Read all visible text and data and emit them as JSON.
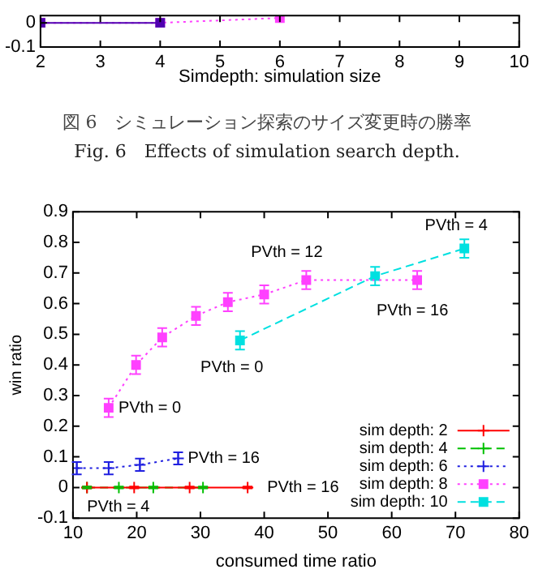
{
  "chart_data": [
    {
      "type": "line",
      "xlabel": "Simdepth: simulation size",
      "xlim": [
        2,
        10
      ],
      "xticks": [
        2,
        3,
        4,
        5,
        6,
        7,
        8,
        9,
        10
      ],
      "ylim": [
        -0.1,
        0.03
      ],
      "yticks": [
        -0.1,
        0
      ],
      "grid": false,
      "legend": false,
      "annotations": [
        "図 6　シミュレーション探索のサイズ変更時の勝率",
        "Fig. 6　Effects of simulation search depth."
      ],
      "series": [
        {
          "color": "#5000b0",
          "marker": "square",
          "line_style": "solid",
          "x": [
            2,
            4
          ],
          "values": [
            0,
            0
          ]
        },
        {
          "color": "#ff40ff",
          "marker": "square",
          "line_style": "dotted",
          "x": [
            2,
            4,
            6
          ],
          "values": [
            0,
            0,
            0.02
          ]
        }
      ]
    },
    {
      "type": "line",
      "xlabel": "consumed time ratio",
      "ylabel": "win ratio",
      "xlim": [
        10,
        80
      ],
      "xticks": [
        10,
        20,
        30,
        40,
        50,
        60,
        70,
        80
      ],
      "ylim": [
        -0.1,
        0.9
      ],
      "yticks": [
        -0.1,
        0,
        0.1,
        0.2,
        0.3,
        0.4,
        0.5,
        0.6,
        0.7,
        0.8,
        0.9
      ],
      "grid": false,
      "legend": "bottom right",
      "series": [
        {
          "name": "sim depth: 2",
          "color": "#ff0000",
          "marker": "cross",
          "line_style": "solid",
          "x": [
            12.2,
            19.6,
            28.3,
            37.4
          ],
          "values": [
            0,
            0,
            0,
            0
          ],
          "errors": [
            0.003,
            0.003,
            0.003,
            0.003
          ]
        },
        {
          "name": "sim depth: 4",
          "color": "#00c000",
          "marker": "cross",
          "line_style": "dashed",
          "x": [
            12.2,
            17.2,
            22.6,
            30.4
          ],
          "values": [
            0,
            0,
            0,
            0
          ],
          "errors": [
            0.003,
            0.003,
            0.003,
            0.003
          ]
        },
        {
          "name": "sim depth: 6",
          "color": "#2020e0",
          "marker": "cross",
          "line_style": "dotted",
          "x": [
            10.6,
            15.6,
            20.5,
            26.5
          ],
          "values": [
            0.063,
            0.063,
            0.074,
            0.095
          ],
          "errors": [
            0.02,
            0.02,
            0.02,
            0.02
          ]
        },
        {
          "name": "sim depth: 8",
          "color": "#ff40ff",
          "marker": "square",
          "line_style": "dotted",
          "x": [
            15.6,
            19.9,
            24.0,
            29.3,
            34.3,
            40.0,
            46.6,
            64.0
          ],
          "values": [
            0.26,
            0.4,
            0.49,
            0.56,
            0.605,
            0.63,
            0.677,
            0.677
          ],
          "errors": [
            0.03,
            0.03,
            0.03,
            0.03,
            0.03,
            0.03,
            0.03,
            0.03
          ]
        },
        {
          "name": "sim depth: 10",
          "color": "#00e0e0",
          "marker": "square",
          "line_style": "dashed",
          "x": [
            36.2,
            57.4,
            71.4
          ],
          "values": [
            0.48,
            0.69,
            0.78
          ],
          "errors": [
            0.03,
            0.03,
            0.03
          ]
        }
      ],
      "annotations": [
        {
          "text": "PVth = 0",
          "x": 15.6,
          "y": 0.26
        },
        {
          "text": "PVth = 12",
          "x": 46.6,
          "y": 0.677
        },
        {
          "text": "PVth = 16",
          "x": 64.0,
          "y": 0.677
        },
        {
          "text": "PVth = 0",
          "x": 36.2,
          "y": 0.48
        },
        {
          "text": "PVth = 4",
          "x": 71.4,
          "y": 0.78
        },
        {
          "text": "PVth = 16",
          "x": 26.5,
          "y": 0.095
        },
        {
          "text": "PVth = 16",
          "x": 37.4,
          "y": 0
        },
        {
          "text": "PVth = 4",
          "x": 12.2,
          "y": 0
        }
      ]
    }
  ]
}
